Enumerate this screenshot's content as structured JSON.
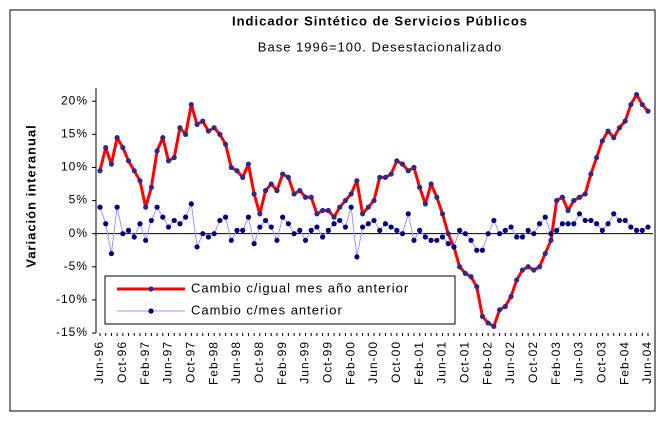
{
  "chart_data": {
    "type": "line",
    "title": "Indicador Sintético de Servicios Públicos",
    "subtitle": "Base 1996=100. Desestacionalizado",
    "y_label": "Variación interanual",
    "categories": [
      "Jun-96",
      null,
      null,
      null,
      "Oct-96",
      null,
      null,
      null,
      "Feb-97",
      null,
      null,
      null,
      "Jun-97",
      null,
      null,
      null,
      "Oct-97",
      null,
      null,
      null,
      "Feb-98",
      null,
      null,
      null,
      "Jun-98",
      null,
      null,
      null,
      "Oct-98",
      null,
      null,
      null,
      "Feb-99",
      null,
      null,
      null,
      "Jun-99",
      null,
      null,
      null,
      "Oct-99",
      null,
      null,
      null,
      "Feb-00",
      null,
      null,
      null,
      "Jun-00",
      null,
      null,
      null,
      "Oct-00",
      null,
      null,
      null,
      "Feb-01",
      null,
      null,
      null,
      "Jun-01",
      null,
      null,
      null,
      "Oct-01",
      null,
      null,
      null,
      "Feb-02",
      null,
      null,
      null,
      "Jun-02",
      null,
      null,
      null,
      "Oct-02",
      null,
      null,
      null,
      "Feb-03",
      null,
      null,
      null,
      "Jun-03",
      null,
      null,
      null,
      "Oct-03",
      null,
      null,
      null,
      "Feb-04",
      null,
      null,
      null,
      "Jun-04"
    ],
    "series": [
      {
        "name": "Cambio c/igual mes año anterior",
        "color": "#ff0000",
        "marker_color": "#2b2b8c",
        "line_width": 3,
        "values": [
          9.5,
          13,
          10.5,
          14.5,
          13,
          11,
          9.5,
          8,
          4,
          7,
          12.5,
          14.5,
          11,
          11.5,
          16,
          15,
          19.5,
          16.5,
          17,
          15.5,
          16,
          15,
          13.5,
          10,
          9.5,
          8.5,
          10.5,
          6,
          3,
          6.5,
          7.5,
          6.5,
          9,
          8.5,
          6,
          6.5,
          5.5,
          5.5,
          3,
          3.5,
          3.5,
          2.5,
          4,
          5,
          6,
          8,
          3,
          4,
          5,
          8.5,
          8.5,
          9,
          11,
          10.5,
          9.5,
          10,
          7,
          4.5,
          7.5,
          5.5,
          3,
          0,
          -2,
          -5,
          -6,
          -6.5,
          -8,
          -12.5,
          -13.5,
          -14,
          -11.5,
          -11,
          -9.5,
          -7,
          -5.5,
          -5,
          -5.5,
          -5,
          -3,
          -1,
          5,
          5.5,
          3.5,
          5,
          5.5,
          6,
          9,
          11.5,
          14,
          15.5,
          14.5,
          16,
          17,
          19.5,
          21,
          19.5,
          18.5
        ]
      },
      {
        "name": "Cambio c/mes anterior",
        "color": "#9999ff",
        "marker_color": "#000080",
        "line_width": 1,
        "values": [
          4,
          1.5,
          -3,
          4,
          0,
          0.5,
          -0.5,
          1.5,
          -1,
          2,
          4,
          2.5,
          1,
          2,
          1.5,
          2.5,
          4.5,
          -2,
          0,
          -0.5,
          0,
          2,
          2.5,
          -1,
          0.5,
          0.5,
          2.5,
          -1.5,
          1,
          2,
          1,
          -1,
          2.5,
          1.5,
          0,
          0.5,
          -1,
          0.5,
          1,
          -0.5,
          0.5,
          1.5,
          2,
          1,
          4,
          -3.5,
          1,
          1.5,
          2,
          0.5,
          1.5,
          1,
          0.5,
          0,
          3,
          -1,
          0.5,
          -0.5,
          -1,
          -1,
          -0.5,
          -1.5,
          -2,
          0.5,
          0,
          -1,
          -2.5,
          -2.5,
          0,
          2,
          0,
          0.5,
          1,
          -0.5,
          -0.5,
          0.5,
          0,
          1.5,
          2.5,
          0,
          0.5,
          1.5,
          1.5,
          1.5,
          3,
          2,
          2,
          1.5,
          0.5,
          1.5,
          3,
          2,
          2,
          1,
          0.5,
          0.5,
          1
        ]
      }
    ],
    "ylim": [
      -15,
      22
    ],
    "yticks": [
      {
        "value": -15,
        "label": "-15%"
      },
      {
        "value": -10,
        "label": "-10%"
      },
      {
        "value": -5,
        "label": "-5%"
      },
      {
        "value": 0,
        "label": "0%"
      },
      {
        "value": 5,
        "label": "5%"
      },
      {
        "value": 10,
        "label": "10%"
      },
      {
        "value": 15,
        "label": "15%"
      },
      {
        "value": 20,
        "label": "20%"
      }
    ],
    "grid": false,
    "legend": "lower left"
  }
}
